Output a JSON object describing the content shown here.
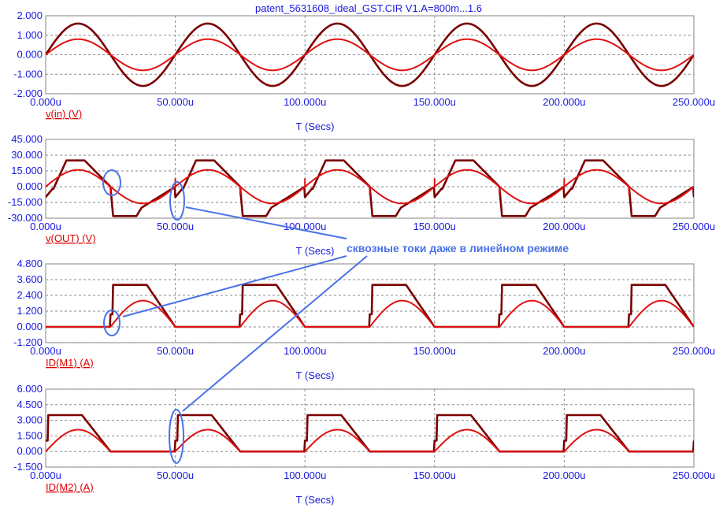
{
  "window": {
    "title": "patent_5631608_ideal_GST.CIR V1.A=800m...1.6"
  },
  "annotation": {
    "text": "сквозные токи даже в линейном режиме",
    "color": "#4a72e8"
  },
  "colors": {
    "dark_trace": "#7a0000",
    "red_trace": "#e01010",
    "axis_text": "#1a1ae0",
    "grid": "#888888"
  },
  "chart_data": [
    {
      "type": "line",
      "xlabel": "T (Secs)",
      "ylabel": "v(in) (V)",
      "xlim": [
        0,
        250
      ],
      "ylim": [
        -2,
        2
      ],
      "x_ticks": [
        "0.000u",
        "50.000u",
        "100.000u",
        "150.000u",
        "200.000u",
        "250.000u"
      ],
      "y_ticks": [
        "2.000",
        "1.000",
        "0.000",
        "-1.000",
        "-2.000"
      ],
      "y_tick_values": [
        2,
        1,
        0,
        -1,
        -2
      ],
      "series": [
        {
          "color": "#7a0000",
          "wave": "sine",
          "amplitude": 1.6,
          "period_us": 50
        },
        {
          "color": "#e01010",
          "wave": "sine",
          "amplitude": 0.8,
          "period_us": 50
        }
      ]
    },
    {
      "type": "line",
      "xlabel": "T (Secs)",
      "ylabel": "v(OUT) (V)",
      "xlim": [
        0,
        250
      ],
      "ylim": [
        -30,
        45
      ],
      "x_ticks": [
        "0.000u",
        "50.000u",
        "100.000u",
        "150.000u",
        "200.000u",
        "250.000u"
      ],
      "y_ticks": [
        "45.000",
        "30.000",
        "15.000",
        "0.000",
        "-15.000",
        "-30.000"
      ],
      "y_tick_values": [
        45,
        30,
        15,
        0,
        -15,
        -30
      ],
      "series": [
        {
          "color": "#7a0000",
          "wave": "clipped_output",
          "high": 25,
          "low": -28,
          "period_us": 50
        },
        {
          "color": "#e01010",
          "wave": "sine",
          "amplitude": 16,
          "period_us": 50,
          "glitch_us": [
            25,
            50,
            75,
            100,
            125,
            150,
            175,
            200,
            225
          ]
        }
      ]
    },
    {
      "type": "line",
      "xlabel": "T (Secs)",
      "ylabel": "ID(M1) (A)",
      "xlim": [
        0,
        250
      ],
      "ylim": [
        -1.2,
        4.8
      ],
      "x_ticks": [
        "0.000u",
        "50.000u",
        "100.000u",
        "150.000u",
        "200.000u",
        "250.000u"
      ],
      "y_ticks": [
        "4.800",
        "3.600",
        "2.400",
        "1.200",
        "0.000",
        "-1.200"
      ],
      "y_tick_values": [
        4.8,
        3.6,
        2.4,
        1.2,
        0,
        -1.2
      ],
      "series": [
        {
          "color": "#7a0000",
          "wave": "half_pulse",
          "high": 3.2,
          "phase": "positive",
          "period_us": 50
        },
        {
          "color": "#e01010",
          "wave": "half_sine",
          "amplitude": 2.0,
          "phase": "positive",
          "period_us": 50
        }
      ]
    },
    {
      "type": "line",
      "xlabel": "T (Secs)",
      "ylabel": "ID(M2) (A)",
      "xlim": [
        0,
        250
      ],
      "ylim": [
        -1.5,
        6
      ],
      "x_ticks": [
        "0.000u",
        "50.000u",
        "100.000u",
        "150.000u",
        "200.000u",
        "250.000u"
      ],
      "y_ticks": [
        "6.000",
        "4.500",
        "3.000",
        "1.500",
        "0.000",
        "-1.500"
      ],
      "y_tick_values": [
        6,
        4.5,
        3,
        1.5,
        0,
        -1.5
      ],
      "series": [
        {
          "color": "#7a0000",
          "wave": "half_pulse",
          "high": 3.5,
          "phase": "negative",
          "period_us": 50
        },
        {
          "color": "#e01010",
          "wave": "half_sine",
          "amplitude": 2.1,
          "phase": "negative",
          "period_us": 50
        }
      ]
    }
  ]
}
